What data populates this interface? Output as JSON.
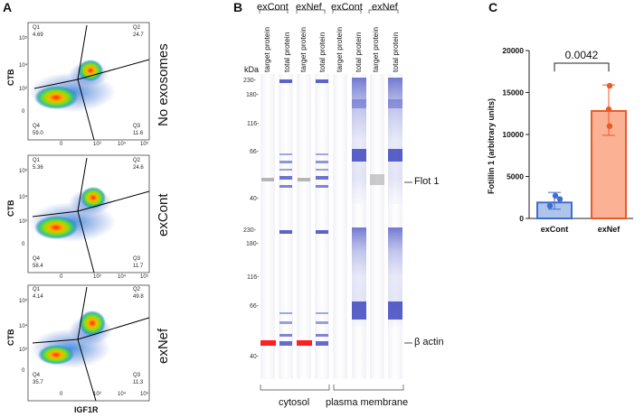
{
  "panelA": {
    "label": "A",
    "y_axis_label": "CTB",
    "x_axis_label": "IGF1R",
    "ticks": {
      "y_top": "10⁵",
      "y_mid": "10⁴",
      "y_low": "10³",
      "y_zero": "0",
      "x_zero": "0",
      "x_3": "10³",
      "x_4": "10⁴",
      "x_5": "10⁵"
    },
    "plots": [
      {
        "condition": "No exosomes",
        "q1_label": "Q1",
        "q1": "4.69",
        "q2_label": "Q2",
        "q2": "24.7",
        "q3_label": "Q3",
        "q3": "11.6",
        "q4_label": "Q4",
        "q4": "59.0"
      },
      {
        "condition": "exCont",
        "q1_label": "Q1",
        "q1": "5.36",
        "q2_label": "Q2",
        "q2": "24.6",
        "q3_label": "Q3",
        "q3": "11.7",
        "q4_label": "Q4",
        "q4": "58.4"
      },
      {
        "condition": "exNef",
        "q1_label": "Q1",
        "q1": "4.14",
        "q2_label": "Q2",
        "q2": "49.8",
        "q3_label": "Q3",
        "q3": "11.3",
        "q4_label": "Q4",
        "q4": "35.7"
      }
    ]
  },
  "panelB": {
    "label": "B",
    "groups": [
      "exCont",
      "exNef",
      "exCont",
      "exNef"
    ],
    "lane_labels": [
      "target protein",
      "total protein",
      "target protein",
      "total protein",
      "target protein",
      "total protein",
      "target protein",
      "total protein"
    ],
    "kda_label": "kDa",
    "markers_top": [
      "230-",
      "180-",
      "116-",
      "66-",
      "40-"
    ],
    "markers_bottom": [
      "230-",
      "180-",
      "116-",
      "66-",
      "40-"
    ],
    "band_labels": {
      "flot": "Flot 1",
      "actin": "β actin"
    },
    "fractions": {
      "cytosol": "cytosol",
      "membrane": "plasma membrane"
    }
  },
  "chart_data": {
    "type": "bar",
    "panel_label": "C",
    "title": "",
    "categories": [
      "exCont",
      "exNef"
    ],
    "values": [
      1900,
      12800
    ],
    "error_upper": [
      3100,
      15900
    ],
    "error_lower": [
      1100,
      9900
    ],
    "points": [
      [
        1500,
        2300,
        2700
      ],
      [
        11000,
        13000,
        15800
      ]
    ],
    "ylabel": "Fotillin 1 (arbitrary units)",
    "xlabel": "",
    "ylim": [
      0,
      20000
    ],
    "yticks": [
      "0",
      "5000",
      "10000",
      "15000",
      "20000"
    ],
    "annotation": "0.0042",
    "colors": {
      "exCont_fill": "#aec4ea",
      "exCont_edge": "#3f6fcc",
      "exNef_fill": "#fbb194",
      "exNef_edge": "#ec5a27"
    }
  }
}
